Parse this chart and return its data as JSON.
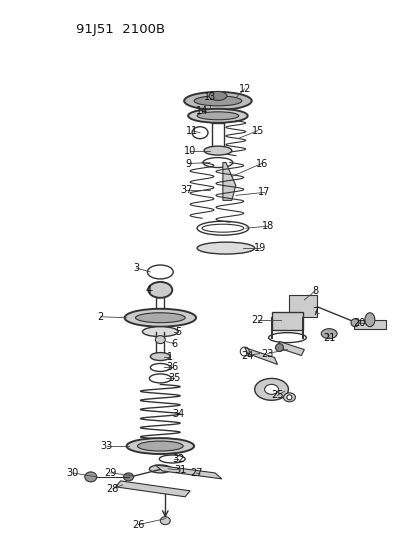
{
  "title": "91J51  2100B",
  "bg_color": "#ffffff",
  "line_color": "#333333",
  "label_color": "#111111",
  "fig_width": 4.14,
  "fig_height": 5.33,
  "dpi": 100
}
